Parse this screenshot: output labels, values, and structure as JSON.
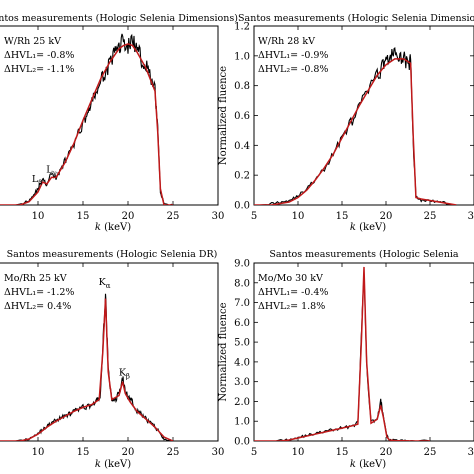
{
  "colors": {
    "measured": "#000000",
    "simulated": "#c0191a"
  },
  "chart_data": [
    {
      "type": "line",
      "title": "Santos measurements (Hologic Selenia Dimensions)",
      "xlabel_var": "k",
      "xlabel_unit": "(keV)",
      "ylabel": "",
      "xlim": [
        5,
        30
      ],
      "ylim": [
        0,
        1.1
      ],
      "xticks": [
        10,
        15,
        20,
        25,
        30
      ],
      "xtick_labels": [
        "10",
        "15",
        "20",
        "25",
        "30"
      ],
      "yticks": [],
      "ytick_labels": [],
      "annotation_lines": [
        "W/Rh 25 kV",
        "ΔHVL₁= -0.8%",
        "ΔHVL₂= -1.1%"
      ],
      "peak_labels": [
        {
          "text": "L_β",
          "x": 9.9,
          "y": 0.14
        },
        {
          "text": "L_γ",
          "x": 11.5,
          "y": 0.2
        }
      ],
      "series": [
        {
          "role": "simulated",
          "x": [
            5,
            8,
            9,
            10,
            10.5,
            11,
            11.5,
            12,
            13,
            14,
            15,
            16,
            17,
            18,
            19,
            19.5,
            20,
            20.5,
            21,
            22,
            23,
            23.3,
            23.6,
            24,
            25
          ],
          "y": [
            0,
            0,
            0.02,
            0.08,
            0.14,
            0.13,
            0.17,
            0.17,
            0.26,
            0.38,
            0.52,
            0.65,
            0.78,
            0.88,
            0.96,
            0.98,
            0.99,
            0.98,
            0.94,
            0.84,
            0.7,
            0.45,
            0.1,
            0,
            0
          ]
        },
        {
          "role": "measured",
          "x": [
            5,
            8,
            9,
            9.5,
            10,
            10.5,
            11,
            11.5,
            12,
            12.5,
            13,
            13.5,
            14,
            14.5,
            15,
            15.5,
            16,
            16.5,
            17,
            17.5,
            18,
            18.5,
            19,
            19.5,
            20,
            20.5,
            21,
            21.5,
            22,
            22.5,
            23,
            23.3,
            23.6,
            24,
            25
          ],
          "y": [
            0,
            0,
            0.03,
            0.06,
            0.1,
            0.16,
            0.12,
            0.2,
            0.16,
            0.22,
            0.27,
            0.32,
            0.37,
            0.44,
            0.5,
            0.57,
            0.63,
            0.7,
            0.76,
            0.82,
            0.87,
            0.93,
            0.98,
            1.01,
            0.97,
            1.02,
            0.95,
            0.9,
            0.86,
            0.78,
            0.7,
            0.48,
            0.08,
            0.01,
            0
          ]
        }
      ]
    },
    {
      "type": "line",
      "title": "Santos measurements (Hologic Selenia Dimensions)",
      "xlabel_var": "k",
      "xlabel_unit": "(keV)",
      "ylabel": "Normalized fluence",
      "xlim": [
        5,
        30
      ],
      "ylim": [
        0,
        1.2
      ],
      "xticks": [
        5,
        10,
        15,
        20,
        25,
        30
      ],
      "xtick_labels": [
        "5",
        "10",
        "15",
        "20",
        "25",
        "30"
      ],
      "yticks": [
        0,
        0.2,
        0.4,
        0.6,
        0.8,
        1.0,
        1.2
      ],
      "ytick_labels": [
        "0.0",
        "0.2",
        "0.4",
        "0.6",
        "0.8",
        "1.0",
        "1.2"
      ],
      "annotation_lines": [
        "W/Rh 28 kV",
        "ΔHVL₁= -0.9%",
        "ΔHVL₂= -0.8%"
      ],
      "peak_labels": [],
      "series": [
        {
          "role": "simulated",
          "x": [
            5,
            7,
            8,
            9,
            10,
            11,
            12,
            13,
            14,
            15,
            16,
            17,
            18,
            19,
            20,
            21,
            22,
            22.8,
            23.1,
            23.4,
            24,
            25,
            26,
            27,
            28
          ],
          "y": [
            0,
            0,
            0.01,
            0.02,
            0.05,
            0.1,
            0.17,
            0.25,
            0.34,
            0.45,
            0.56,
            0.67,
            0.77,
            0.87,
            0.94,
            0.98,
            0.98,
            0.95,
            0.45,
            0.05,
            0.04,
            0.03,
            0.02,
            0.01,
            0
          ]
        },
        {
          "role": "measured",
          "x": [
            5,
            7,
            8,
            9,
            10,
            11,
            12,
            13,
            14,
            15,
            16,
            17,
            18,
            19,
            19.5,
            20,
            20.5,
            21,
            21.5,
            22,
            22.5,
            22.8,
            23.1,
            23.4,
            24,
            25,
            26,
            27,
            28
          ],
          "y": [
            0,
            0.01,
            0.02,
            0.03,
            0.06,
            0.11,
            0.17,
            0.24,
            0.34,
            0.46,
            0.55,
            0.66,
            0.78,
            0.86,
            0.92,
            1.0,
            0.96,
            1.06,
            0.95,
            1.02,
            0.92,
            0.97,
            0.4,
            0.06,
            0.03,
            0.03,
            0.02,
            0.01,
            0
          ]
        }
      ]
    },
    {
      "type": "line",
      "title": "Santos measurements (Hologic Selenia DR)",
      "xlabel_var": "k",
      "xlabel_unit": "(keV)",
      "ylabel": "",
      "xlim": [
        5,
        30
      ],
      "ylim": [
        0,
        9
      ],
      "xticks": [
        10,
        15,
        20,
        25,
        30
      ],
      "xtick_labels": [
        "10",
        "15",
        "20",
        "25",
        "30"
      ],
      "yticks": [],
      "ytick_labels": [],
      "annotation_lines": [
        "Mo/Rh 25 kV",
        "ΔHVL₁= -1.2%",
        "ΔHVL₂=  0.4%"
      ],
      "peak_labels": [
        {
          "text": "K_α",
          "x": 17.4,
          "y": 7.9
        },
        {
          "text": "K_β",
          "x": 19.6,
          "y": 3.3
        }
      ],
      "series": [
        {
          "role": "simulated",
          "x": [
            5,
            8,
            9,
            10,
            11,
            12,
            13,
            14,
            15,
            16,
            16.8,
            17.2,
            17.5,
            17.8,
            18.2,
            19,
            19.4,
            19.7,
            20.2,
            21,
            22,
            23,
            24,
            25
          ],
          "y": [
            0,
            0,
            0.1,
            0.35,
            0.7,
            1.0,
            1.25,
            1.5,
            1.7,
            1.85,
            2.1,
            4.5,
            7.2,
            3.5,
            2.1,
            2.3,
            3.0,
            2.4,
            2.0,
            1.5,
            1.1,
            0.7,
            0.2,
            0
          ]
        },
        {
          "role": "measured",
          "x": [
            5,
            8,
            9,
            10,
            10.5,
            11,
            11.5,
            12,
            12.5,
            13,
            13.5,
            14,
            14.5,
            15,
            15.5,
            16,
            16.5,
            16.9,
            17.2,
            17.5,
            17.8,
            18.2,
            18.6,
            19,
            19.4,
            19.7,
            20.2,
            20.6,
            21,
            21.5,
            22,
            22.5,
            23,
            23.5,
            24,
            25
          ],
          "y": [
            0,
            0,
            0.12,
            0.4,
            0.55,
            0.75,
            0.9,
            1.05,
            1.15,
            1.3,
            1.35,
            1.5,
            1.6,
            1.7,
            1.75,
            1.85,
            2.0,
            2.2,
            4.6,
            7.6,
            3.6,
            2.0,
            2.1,
            2.4,
            3.2,
            2.5,
            2.1,
            1.9,
            1.5,
            1.35,
            1.1,
            0.95,
            0.7,
            0.45,
            0.1,
            0
          ]
        }
      ]
    },
    {
      "type": "line",
      "title": "Santos measurements (Hologic Selenia",
      "xlabel_var": "k",
      "xlabel_unit": "(keV)",
      "ylabel": "Normalized fluence",
      "xlim": [
        5,
        30
      ],
      "ylim": [
        0,
        9
      ],
      "xticks": [
        5,
        10,
        15,
        20,
        25,
        30
      ],
      "xtick_labels": [
        "5",
        "10",
        "15",
        "20",
        "25",
        "30"
      ],
      "yticks": [
        0,
        1,
        2,
        3,
        4,
        5,
        6,
        7,
        8,
        9
      ],
      "ytick_labels": [
        "0.0",
        "1.0",
        "2.0",
        "3.0",
        "4.0",
        "5.0",
        "6.0",
        "7.0",
        "8.0",
        "9.0"
      ],
      "annotation_lines": [
        "Mo/Mo 30 kV",
        "ΔHVL₁= -0.4%",
        "ΔHVL₂=  1.8%"
      ],
      "peak_labels": [],
      "series": [
        {
          "role": "simulated",
          "x": [
            5,
            8,
            9,
            10,
            11,
            12,
            13,
            14,
            15,
            16,
            16.8,
            17.2,
            17.5,
            17.8,
            18.3,
            19,
            19.4,
            19.7,
            20.1,
            20.4,
            21,
            22,
            23,
            25
          ],
          "y": [
            0,
            0,
            0.05,
            0.15,
            0.25,
            0.35,
            0.45,
            0.55,
            0.65,
            0.75,
            0.85,
            5.0,
            8.8,
            4.0,
            0.9,
            1.1,
            1.8,
            1.2,
            0.2,
            0.05,
            0.02,
            0.01,
            0,
            0
          ]
        },
        {
          "role": "measured",
          "x": [
            5,
            8,
            9,
            10,
            11,
            12,
            13,
            14,
            15,
            16,
            16.8,
            17.2,
            17.5,
            17.8,
            18.3,
            19,
            19.4,
            19.7,
            20.1,
            20.4,
            21,
            22,
            23,
            25
          ],
          "y": [
            0,
            0.02,
            0.08,
            0.18,
            0.28,
            0.38,
            0.47,
            0.57,
            0.66,
            0.75,
            0.9,
            5.2,
            8.4,
            3.8,
            0.95,
            1.15,
            2.0,
            1.3,
            0.25,
            0.06,
            0.03,
            0.01,
            0,
            0
          ]
        }
      ]
    }
  ]
}
